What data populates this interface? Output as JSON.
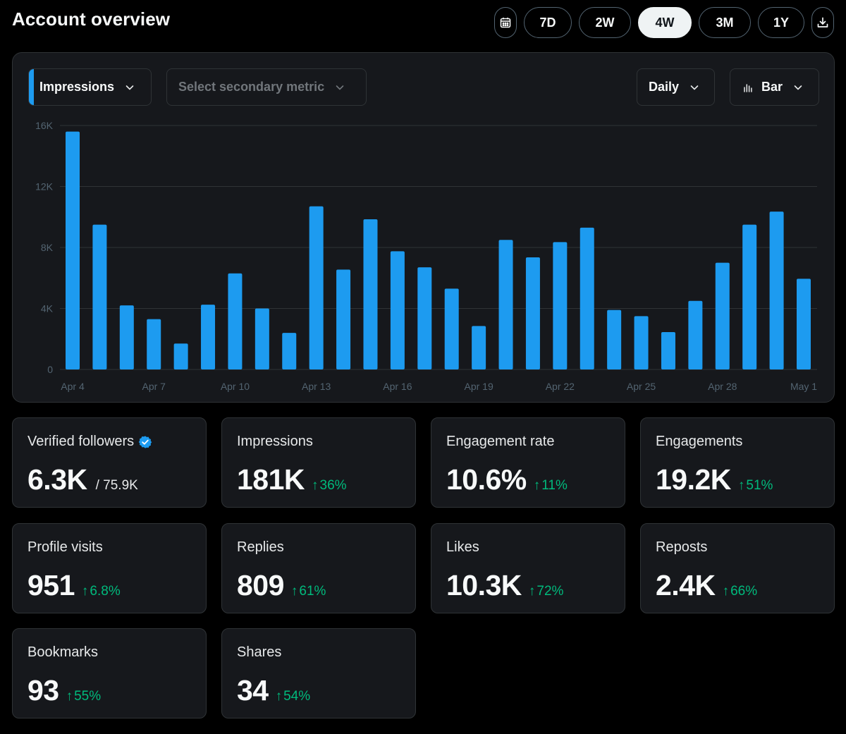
{
  "header": {
    "title": "Account overview"
  },
  "ranges": {
    "calendar_icon": "calendar-icon",
    "items": [
      "7D",
      "2W",
      "4W",
      "3M",
      "1Y"
    ],
    "active": "4W",
    "download_icon": "download-icon"
  },
  "controls": {
    "primary_metric": "Impressions",
    "secondary_placeholder": "Select secondary metric",
    "interval": "Daily",
    "chart_type": "Bar"
  },
  "colors": {
    "accent": "#1d9bf0",
    "positive": "#00ba7c",
    "card": "#16181c",
    "border": "#2f3336"
  },
  "chart_data": {
    "type": "bar",
    "title": "",
    "xlabel": "",
    "ylabel": "",
    "ylim": [
      0,
      16000
    ],
    "yticks": [
      0,
      4000,
      8000,
      12000,
      16000
    ],
    "ytick_labels": [
      "0",
      "4K",
      "8K",
      "12K",
      "16K"
    ],
    "categories": [
      "Apr 4",
      "Apr 5",
      "Apr 6",
      "Apr 7",
      "Apr 8",
      "Apr 9",
      "Apr 10",
      "Apr 11",
      "Apr 12",
      "Apr 13",
      "Apr 14",
      "Apr 15",
      "Apr 16",
      "Apr 17",
      "Apr 18",
      "Apr 19",
      "Apr 20",
      "Apr 21",
      "Apr 22",
      "Apr 23",
      "Apr 24",
      "Apr 25",
      "Apr 26",
      "Apr 27",
      "Apr 28",
      "Apr 29",
      "Apr 30",
      "May 1"
    ],
    "xtick_labels": [
      "Apr 4",
      "Apr 7",
      "Apr 10",
      "Apr 13",
      "Apr 16",
      "Apr 19",
      "Apr 22",
      "Apr 25",
      "Apr 28",
      "May 1"
    ],
    "values": [
      15600,
      9500,
      4200,
      3300,
      1700,
      4250,
      6300,
      4000,
      2400,
      10700,
      6550,
      9850,
      7750,
      6700,
      5300,
      2850,
      8500,
      7350,
      8350,
      9300,
      3900,
      3500,
      2450,
      4500,
      7000,
      9500,
      10350,
      5950
    ],
    "color": "#1d9bf0",
    "grid": true,
    "legend": "none"
  },
  "stats": [
    {
      "label": "Verified followers",
      "value": "6.3K",
      "sub": "/ 75.9K",
      "change": "",
      "verified": true
    },
    {
      "label": "Impressions",
      "value": "181K",
      "sub": "",
      "change": "36%"
    },
    {
      "label": "Engagement rate",
      "value": "10.6%",
      "sub": "",
      "change": "11%"
    },
    {
      "label": "Engagements",
      "value": "19.2K",
      "sub": "",
      "change": "51%"
    },
    {
      "label": "Profile visits",
      "value": "951",
      "sub": "",
      "change": "6.8%"
    },
    {
      "label": "Replies",
      "value": "809",
      "sub": "",
      "change": "61%"
    },
    {
      "label": "Likes",
      "value": "10.3K",
      "sub": "",
      "change": "72%"
    },
    {
      "label": "Reposts",
      "value": "2.4K",
      "sub": "",
      "change": "66%"
    },
    {
      "label": "Bookmarks",
      "value": "93",
      "sub": "",
      "change": "55%"
    },
    {
      "label": "Shares",
      "value": "34",
      "sub": "",
      "change": "54%"
    }
  ]
}
